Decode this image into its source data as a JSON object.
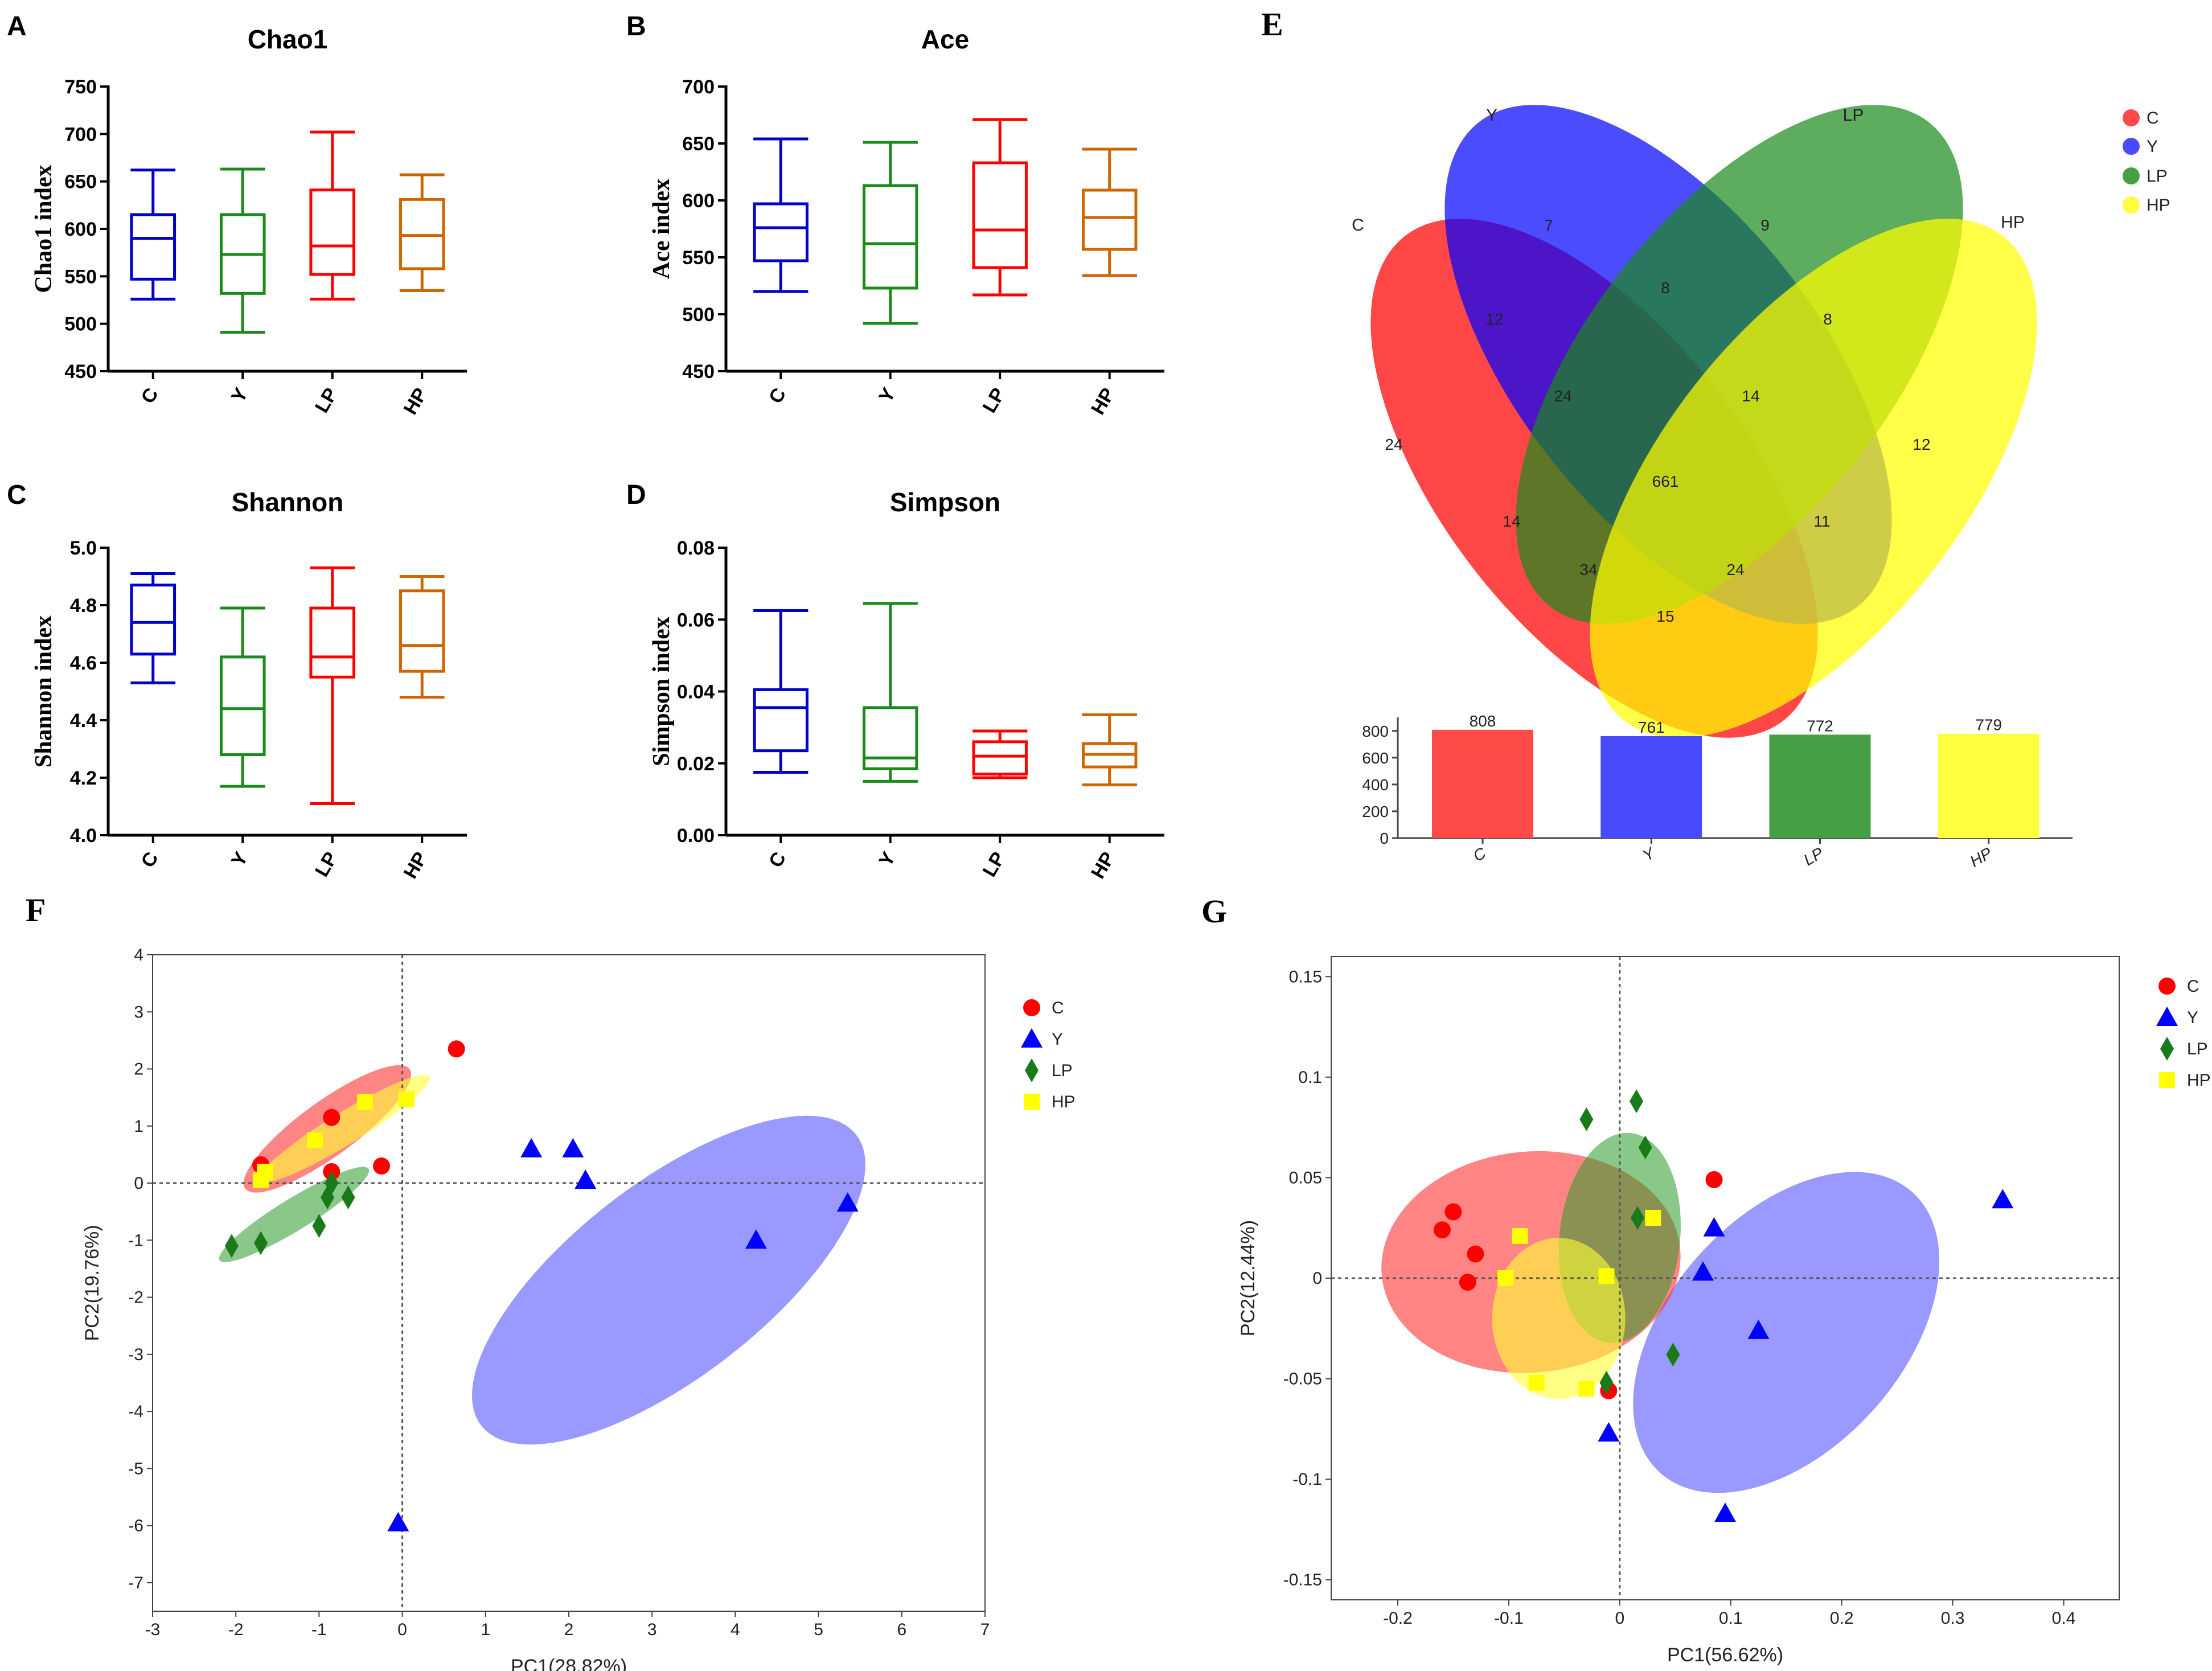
{
  "figure": {
    "background": "#ffffff"
  },
  "colors": {
    "C": "#ff0000",
    "Y": "#0000ff",
    "LP": "#1f8a1f",
    "HP": "#ffff00",
    "box_C": "#0000cc",
    "box_Y": "#1a8a1a",
    "box_LP": "#ff0000",
    "box_HP": "#cc6600"
  },
  "chart_data": [
    {
      "id": "A",
      "panel_label": "A",
      "type": "boxplot",
      "title": "Chao1",
      "ylabel": "Chao1 index",
      "ylim": [
        450,
        750
      ],
      "yticks": [
        "450",
        "500",
        "550",
        "600",
        "650",
        "700",
        "750"
      ],
      "categories": [
        "C",
        "Y",
        "LP",
        "HP"
      ],
      "boxes": [
        {
          "group": "C",
          "min": 526,
          "q1": 547,
          "median": 590,
          "q3": 615,
          "max": 662
        },
        {
          "group": "Y",
          "min": 491,
          "q1": 532,
          "median": 573,
          "q3": 615,
          "max": 663
        },
        {
          "group": "LP",
          "min": 526,
          "q1": 552,
          "median": 582,
          "q3": 641,
          "max": 702
        },
        {
          "group": "HP",
          "min": 535,
          "q1": 558,
          "median": 593,
          "q3": 631,
          "max": 657
        }
      ]
    },
    {
      "id": "B",
      "panel_label": "B",
      "type": "boxplot",
      "title": "Ace",
      "ylabel": "Ace index",
      "ylim": [
        450,
        700
      ],
      "yticks": [
        "450",
        "500",
        "550",
        "600",
        "650",
        "700"
      ],
      "categories": [
        "C",
        "Y",
        "LP",
        "HP"
      ],
      "boxes": [
        {
          "group": "C",
          "min": 520,
          "q1": 547,
          "median": 576,
          "q3": 597,
          "max": 654
        },
        {
          "group": "Y",
          "min": 492,
          "q1": 523,
          "median": 562,
          "q3": 613,
          "max": 651
        },
        {
          "group": "LP",
          "min": 517,
          "q1": 541,
          "median": 574,
          "q3": 633,
          "max": 671
        },
        {
          "group": "HP",
          "min": 534,
          "q1": 557,
          "median": 585,
          "q3": 609,
          "max": 645
        }
      ]
    },
    {
      "id": "C",
      "panel_label": "C",
      "type": "boxplot",
      "title": "Shannon",
      "ylabel": "Shannon index",
      "ylim": [
        4.0,
        5.0
      ],
      "yticks": [
        "4.0",
        "4.2",
        "4.4",
        "4.6",
        "4.8",
        "5.0"
      ],
      "categories": [
        "C",
        "Y",
        "LP",
        "HP"
      ],
      "boxes": [
        {
          "group": "C",
          "min": 4.53,
          "q1": 4.63,
          "median": 4.74,
          "q3": 4.87,
          "max": 4.91
        },
        {
          "group": "Y",
          "min": 4.17,
          "q1": 4.28,
          "median": 4.44,
          "q3": 4.62,
          "max": 4.79
        },
        {
          "group": "LP",
          "min": 4.11,
          "q1": 4.55,
          "median": 4.62,
          "q3": 4.79,
          "max": 4.93
        },
        {
          "group": "HP",
          "min": 4.48,
          "q1": 4.57,
          "median": 4.66,
          "q3": 4.85,
          "max": 4.9
        }
      ]
    },
    {
      "id": "D",
      "panel_label": "D",
      "type": "boxplot",
      "title": "Simpson",
      "ylabel": "Simpson index",
      "ylim": [
        0.0,
        0.08
      ],
      "yticks": [
        "0.00",
        "0.02",
        "0.04",
        "0.06",
        "0.08"
      ],
      "categories": [
        "C",
        "Y",
        "LP",
        "HP"
      ],
      "boxes": [
        {
          "group": "C",
          "min": 0.0175,
          "q1": 0.0235,
          "median": 0.0355,
          "q3": 0.0405,
          "max": 0.0625
        },
        {
          "group": "Y",
          "min": 0.015,
          "q1": 0.0185,
          "median": 0.0215,
          "q3": 0.0355,
          "max": 0.0645
        },
        {
          "group": "LP",
          "min": 0.016,
          "q1": 0.017,
          "median": 0.022,
          "q3": 0.026,
          "max": 0.029
        },
        {
          "group": "HP",
          "min": 0.014,
          "q1": 0.019,
          "median": 0.0225,
          "q3": 0.0255,
          "max": 0.0335
        }
      ]
    },
    {
      "id": "E",
      "panel_label": "E",
      "type": "venn",
      "sets": [
        "C",
        "Y",
        "LP",
        "HP"
      ],
      "regions": [
        {
          "label": "7",
          "sets": "Y"
        },
        {
          "label": "9",
          "sets": "LP"
        },
        {
          "label": "12",
          "sets": "C∩Y"
        },
        {
          "label": "8",
          "sets": "Y∩LP"
        },
        {
          "label": "8",
          "sets": "LP∩HP"
        },
        {
          "label": "24",
          "sets": "C"
        },
        {
          "label": "24",
          "sets": "C∩Y∩LP"
        },
        {
          "label": "14",
          "sets": "Y∩LP∩HP"
        },
        {
          "label": "12",
          "sets": "HP"
        },
        {
          "label": "661",
          "sets": "C∩Y∩LP∩HP"
        },
        {
          "label": "14",
          "sets": "C∩LP"
        },
        {
          "label": "11",
          "sets": "Y∩HP"
        },
        {
          "label": "34",
          "sets": "C∩LP∩HP"
        },
        {
          "label": "24",
          "sets": "C∩Y∩HP"
        },
        {
          "label": "15",
          "sets": "C∩HP"
        }
      ],
      "bar": {
        "categories": [
          "C",
          "Y",
          "LP",
          "HP"
        ],
        "values": [
          808,
          761,
          772,
          779
        ],
        "value_labels": [
          "808",
          "761",
          "772",
          "779"
        ],
        "yticks": [
          "0",
          "200",
          "400",
          "600",
          "800"
        ],
        "ylim": [
          0,
          850
        ]
      },
      "legend": [
        "C",
        "Y",
        "LP",
        "HP"
      ]
    },
    {
      "id": "F",
      "panel_label": "F",
      "type": "scatter",
      "xlabel": "PC1(28.82%)",
      "ylabel": "PC2(19.76%)",
      "xlim": [
        -3,
        7
      ],
      "ylim": [
        -7.5,
        4
      ],
      "xticks": [
        "-3",
        "-2",
        "-1",
        "0",
        "1",
        "2",
        "3",
        "4",
        "5",
        "6",
        "7"
      ],
      "yticks": [
        "4",
        "3",
        "2",
        "1",
        "0",
        "-1",
        "-2",
        "-3",
        "-4",
        "-5",
        "-6",
        "-7"
      ],
      "legend": [
        "C",
        "Y",
        "LP",
        "HP"
      ],
      "series": [
        {
          "name": "C",
          "marker": "circle",
          "points": [
            [
              0.65,
              2.35
            ],
            [
              -0.85,
              1.15
            ],
            [
              -1.7,
              0.32
            ],
            [
              -0.85,
              0.2
            ],
            [
              -0.25,
              0.3
            ]
          ]
        },
        {
          "name": "Y",
          "marker": "triangle",
          "points": [
            [
              1.55,
              0.6
            ],
            [
              2.05,
              0.6
            ],
            [
              2.2,
              0.05
            ],
            [
              4.25,
              -1.0
            ],
            [
              5.35,
              -0.35
            ],
            [
              -0.05,
              -5.95
            ]
          ]
        },
        {
          "name": "LP",
          "marker": "diamond",
          "points": [
            [
              -2.05,
              -1.1
            ],
            [
              -1.7,
              -1.05
            ],
            [
              -1.0,
              -0.75
            ],
            [
              -0.9,
              -0.25
            ],
            [
              -0.85,
              0.0
            ],
            [
              -0.65,
              -0.25
            ]
          ]
        },
        {
          "name": "HP",
          "marker": "square",
          "points": [
            [
              -0.45,
              1.42
            ],
            [
              0.05,
              1.47
            ],
            [
              -1.05,
              0.75
            ],
            [
              -1.65,
              0.2
            ],
            [
              -1.7,
              0.05
            ]
          ]
        }
      ],
      "ellipses": [
        {
          "group": "C",
          "cx": -0.9,
          "cy": 0.95,
          "rx": 1.22,
          "ry": 0.48,
          "angle_deg": -40
        },
        {
          "group": "Y",
          "cx": 3.2,
          "cy": -1.7,
          "rx": 2.85,
          "ry": 1.7,
          "angle_deg": -42
        },
        {
          "group": "LP",
          "cx": -1.3,
          "cy": -0.55,
          "rx": 1.05,
          "ry": 0.28,
          "angle_deg": -35
        },
        {
          "group": "HP",
          "cx": -0.7,
          "cy": 0.95,
          "rx": 1.2,
          "ry": 0.28,
          "angle_deg": -35
        }
      ]
    },
    {
      "id": "G",
      "panel_label": "G",
      "type": "scatter",
      "xlabel": "PC1(56.62%)",
      "ylabel": "PC2(12.44%)",
      "xlim": [
        -0.26,
        0.45
      ],
      "ylim": [
        -0.16,
        0.16
      ],
      "xticks": [
        "-0.2",
        "-0.1",
        "0",
        "0.1",
        "0.2",
        "0.3",
        "0.4"
      ],
      "xtick_values": [
        -0.2,
        -0.1,
        0,
        0.1,
        0.2,
        0.3,
        0.4
      ],
      "yticks": [
        "0.15",
        "0.1",
        "0.05",
        "0",
        "-0.05",
        "-0.1",
        "-0.15"
      ],
      "ytick_values": [
        0.15,
        0.1,
        0.05,
        0,
        -0.05,
        -0.1,
        -0.15
      ],
      "legend": [
        "C",
        "Y",
        "LP",
        "HP"
      ],
      "series": [
        {
          "name": "C",
          "marker": "circle",
          "points": [
            [
              -0.16,
              0.024
            ],
            [
              -0.15,
              0.033
            ],
            [
              -0.13,
              0.012
            ],
            [
              -0.137,
              -0.002
            ],
            [
              0.085,
              0.049
            ],
            [
              -0.01,
              -0.056
            ]
          ]
        },
        {
          "name": "Y",
          "marker": "triangle",
          "points": [
            [
              0.085,
              0.025
            ],
            [
              0.075,
              0.003
            ],
            [
              0.125,
              -0.026
            ],
            [
              -0.01,
              -0.077
            ],
            [
              0.095,
              -0.117
            ],
            [
              0.345,
              0.039
            ]
          ]
        },
        {
          "name": "LP",
          "marker": "diamond",
          "points": [
            [
              -0.03,
              0.079
            ],
            [
              0.015,
              0.088
            ],
            [
              0.023,
              0.065
            ],
            [
              0.016,
              0.03
            ],
            [
              0.048,
              -0.038
            ],
            [
              -0.012,
              -0.052
            ]
          ]
        },
        {
          "name": "HP",
          "marker": "square",
          "points": [
            [
              -0.09,
              0.021
            ],
            [
              -0.103,
              0.0
            ],
            [
              -0.012,
              0.001
            ],
            [
              0.03,
              0.03
            ],
            [
              -0.075,
              -0.052
            ],
            [
              -0.03,
              -0.055
            ]
          ]
        }
      ],
      "ellipses": [
        {
          "group": "C",
          "cx": -0.08,
          "cy": 0.008,
          "rx": 0.135,
          "ry": 0.055,
          "angle_deg": -5
        },
        {
          "group": "Y",
          "cx": 0.15,
          "cy": -0.027,
          "rx": 0.17,
          "ry": 0.058,
          "angle_deg": -48
        },
        {
          "group": "LP",
          "cx": 0.0,
          "cy": 0.02,
          "rx": 0.095,
          "ry": 0.03,
          "angle_deg": -84
        },
        {
          "group": "HP",
          "cx": -0.055,
          "cy": -0.02,
          "rx": 0.06,
          "ry": 0.04,
          "angle_deg": 0
        }
      ]
    }
  ]
}
